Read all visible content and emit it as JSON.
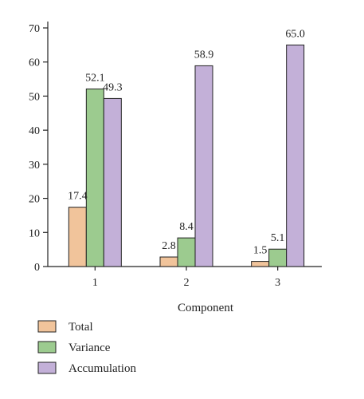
{
  "chart_data": {
    "type": "bar",
    "title": "",
    "xlabel": "Component",
    "ylabel": "",
    "categories": [
      "1",
      "2",
      "3"
    ],
    "ylim": [
      0,
      70
    ],
    "yticks": [
      0,
      10,
      20,
      30,
      40,
      50,
      60,
      70
    ],
    "grid": false,
    "legend_position": "bottom-left",
    "series": [
      {
        "name": "Total",
        "color": "#f1c49b",
        "values": [
          17.4,
          2.8,
          1.5
        ],
        "labels": [
          "17.4",
          "2.8",
          "1.5"
        ]
      },
      {
        "name": "Variance",
        "color": "#9ccb8f",
        "values": [
          52.1,
          8.4,
          5.1
        ],
        "labels": [
          "52.1",
          "8.4",
          "5.1"
        ]
      },
      {
        "name": "Accumulation",
        "color": "#c3b0d8",
        "values": [
          49.3,
          58.9,
          65.0
        ],
        "labels": [
          "49.3",
          "58.9",
          "65.0"
        ]
      }
    ]
  }
}
